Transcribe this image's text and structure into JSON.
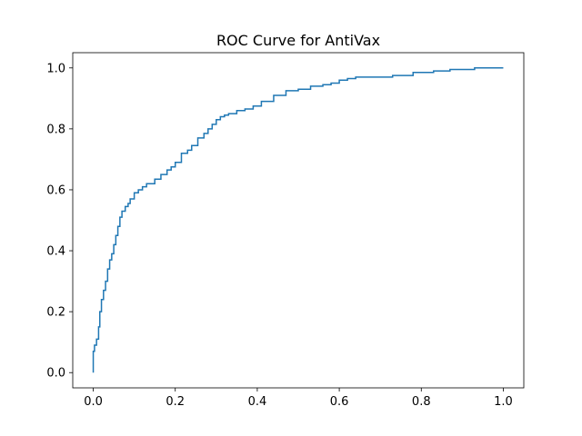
{
  "chart_data": {
    "type": "line",
    "title": "ROC Curve for AntiVax",
    "xlabel": "",
    "ylabel": "",
    "xlim": [
      -0.05,
      1.05
    ],
    "ylim": [
      -0.05,
      1.05
    ],
    "xticks": [
      0.0,
      0.2,
      0.4,
      0.6,
      0.8,
      1.0
    ],
    "xtick_labels": [
      "0.0",
      "0.2",
      "0.4",
      "0.6",
      "0.8",
      "1.0"
    ],
    "yticks": [
      0.0,
      0.2,
      0.4,
      0.6,
      0.8,
      1.0
    ],
    "ytick_labels": [
      "0.0",
      "0.2",
      "0.4",
      "0.6",
      "0.8",
      "1.0"
    ],
    "grid": false,
    "legend": "none",
    "series": [
      {
        "color": "#1f77b4",
        "x": [
          0.0,
          0.0,
          0.003,
          0.003,
          0.008,
          0.008,
          0.013,
          0.013,
          0.016,
          0.016,
          0.02,
          0.02,
          0.025,
          0.025,
          0.03,
          0.03,
          0.035,
          0.035,
          0.04,
          0.04,
          0.045,
          0.045,
          0.05,
          0.05,
          0.055,
          0.055,
          0.06,
          0.06,
          0.065,
          0.065,
          0.07,
          0.07,
          0.078,
          0.078,
          0.085,
          0.085,
          0.09,
          0.09,
          0.1,
          0.1,
          0.11,
          0.11,
          0.12,
          0.12,
          0.13,
          0.13,
          0.15,
          0.15,
          0.165,
          0.165,
          0.18,
          0.18,
          0.19,
          0.19,
          0.2,
          0.2,
          0.215,
          0.215,
          0.23,
          0.23,
          0.24,
          0.24,
          0.255,
          0.255,
          0.27,
          0.27,
          0.28,
          0.28,
          0.29,
          0.29,
          0.3,
          0.3,
          0.31,
          0.31,
          0.32,
          0.32,
          0.33,
          0.33,
          0.35,
          0.35,
          0.37,
          0.37,
          0.39,
          0.39,
          0.41,
          0.41,
          0.44,
          0.44,
          0.47,
          0.47,
          0.5,
          0.5,
          0.53,
          0.53,
          0.56,
          0.56,
          0.58,
          0.58,
          0.6,
          0.6,
          0.62,
          0.62,
          0.64,
          0.64,
          0.73,
          0.73,
          0.78,
          0.78,
          0.83,
          0.83,
          0.87,
          0.87,
          0.93,
          0.93,
          1.0
        ],
        "y": [
          0.0,
          0.07,
          0.07,
          0.09,
          0.09,
          0.11,
          0.11,
          0.15,
          0.15,
          0.2,
          0.2,
          0.24,
          0.24,
          0.27,
          0.27,
          0.3,
          0.3,
          0.34,
          0.34,
          0.37,
          0.37,
          0.39,
          0.39,
          0.42,
          0.42,
          0.45,
          0.45,
          0.48,
          0.48,
          0.51,
          0.51,
          0.53,
          0.53,
          0.545,
          0.545,
          0.555,
          0.555,
          0.57,
          0.57,
          0.59,
          0.59,
          0.6,
          0.6,
          0.61,
          0.61,
          0.62,
          0.62,
          0.635,
          0.635,
          0.65,
          0.65,
          0.665,
          0.665,
          0.675,
          0.675,
          0.69,
          0.69,
          0.72,
          0.72,
          0.73,
          0.73,
          0.745,
          0.745,
          0.77,
          0.77,
          0.785,
          0.785,
          0.8,
          0.8,
          0.815,
          0.815,
          0.83,
          0.83,
          0.84,
          0.84,
          0.845,
          0.845,
          0.85,
          0.85,
          0.86,
          0.86,
          0.865,
          0.865,
          0.875,
          0.875,
          0.89,
          0.89,
          0.91,
          0.91,
          0.925,
          0.925,
          0.93,
          0.93,
          0.94,
          0.94,
          0.945,
          0.945,
          0.95,
          0.95,
          0.96,
          0.96,
          0.965,
          0.965,
          0.97,
          0.97,
          0.975,
          0.975,
          0.985,
          0.985,
          0.99,
          0.99,
          0.995,
          0.995,
          1.0,
          1.0
        ]
      }
    ]
  }
}
